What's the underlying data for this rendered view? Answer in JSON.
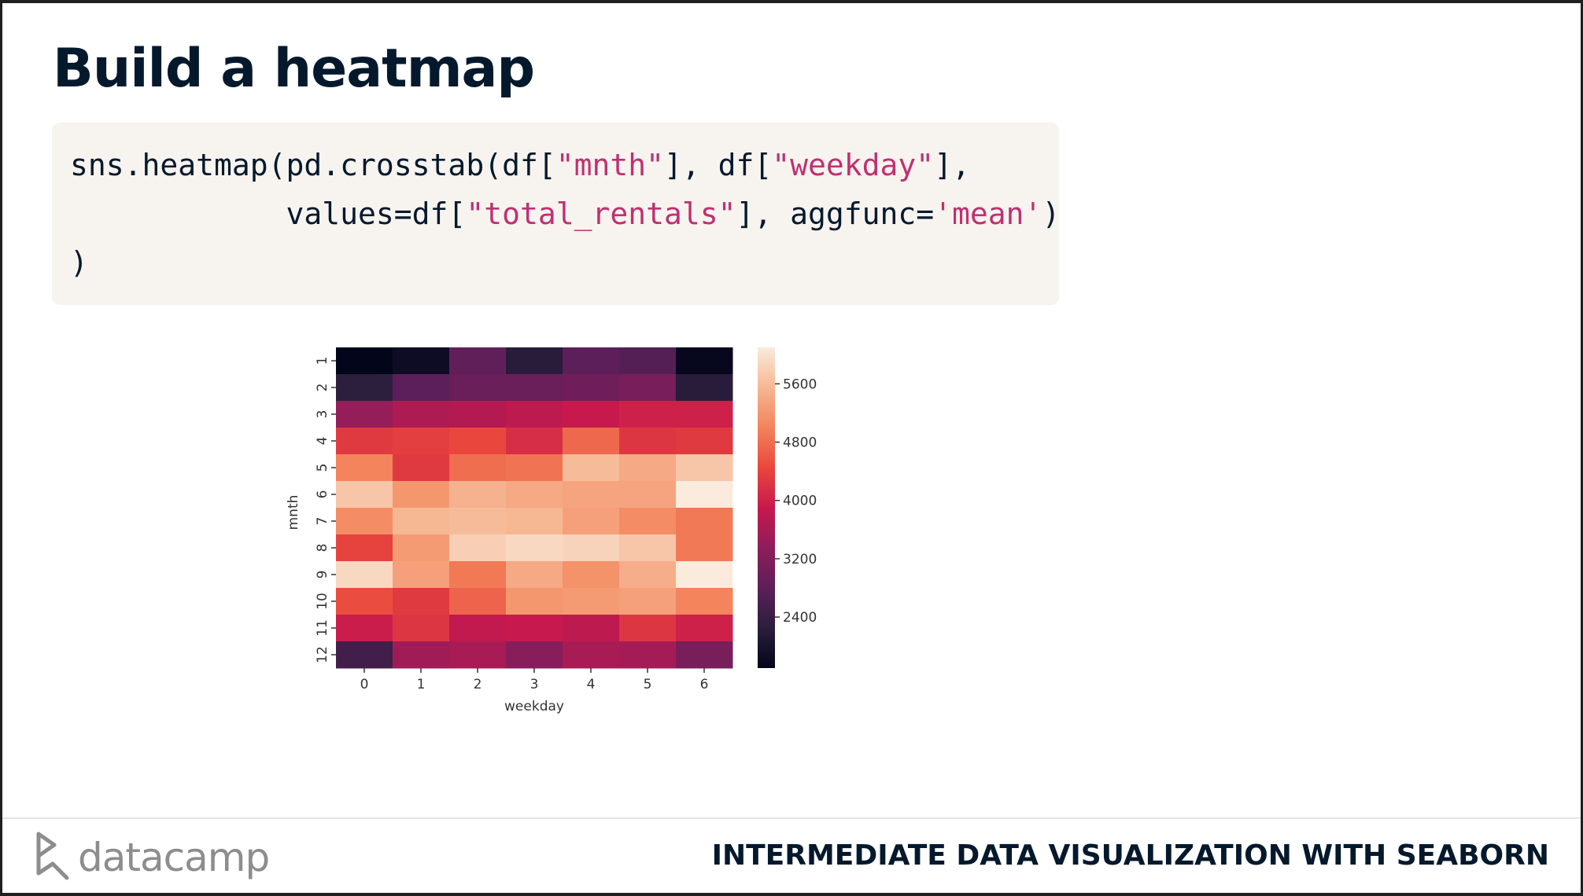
{
  "slide": {
    "title": "Build a heatmap",
    "course_name": "INTERMEDIATE DATA VISUALIZATION WITH SEABORN",
    "logo_text": "datacamp"
  },
  "code": {
    "line1": [
      {
        "t": "sns.heatmap(pd.crosstab(df[",
        "s": false
      },
      {
        "t": "\"mnth\"",
        "s": true
      },
      {
        "t": "], df[",
        "s": false
      },
      {
        "t": "\"weekday\"",
        "s": true
      },
      {
        "t": "],",
        "s": false
      }
    ],
    "line2": [
      {
        "t": "            values=df[",
        "s": false
      },
      {
        "t": "\"total_rentals\"",
        "s": true
      },
      {
        "t": "], aggfunc=",
        "s": false
      },
      {
        "t": "'mean'",
        "s": true
      },
      {
        "t": ")",
        "s": false
      }
    ],
    "line3": [
      {
        "t": ")",
        "s": false
      }
    ]
  },
  "chart_data": {
    "type": "heatmap",
    "xlabel": "weekday",
    "ylabel": "mnth",
    "x_categories": [
      "0",
      "1",
      "2",
      "3",
      "4",
      "5",
      "6"
    ],
    "y_categories": [
      "1",
      "2",
      "3",
      "4",
      "5",
      "6",
      "7",
      "8",
      "9",
      "10",
      "11",
      "12"
    ],
    "values": [
      [
        1700,
        1850,
        2850,
        2200,
        2800,
        2700,
        1750
      ],
      [
        2250,
        2800,
        2950,
        2950,
        3000,
        3100,
        2200
      ],
      [
        3400,
        3650,
        3700,
        3800,
        3900,
        4000,
        4000
      ],
      [
        4300,
        4350,
        4450,
        4150,
        4750,
        4250,
        4300
      ],
      [
        5000,
        4300,
        4800,
        4850,
        5600,
        5400,
        5700
      ],
      [
        5700,
        5200,
        5500,
        5400,
        5350,
        5350,
        6100
      ],
      [
        5100,
        5550,
        5600,
        5550,
        5300,
        5100,
        4900
      ],
      [
        4400,
        5250,
        5800,
        5900,
        5850,
        5700,
        4900
      ],
      [
        5900,
        5300,
        4900,
        5400,
        5150,
        5450,
        6100
      ],
      [
        4500,
        4300,
        4700,
        5200,
        5250,
        5300,
        5000
      ],
      [
        3950,
        4250,
        3850,
        3900,
        3800,
        4250,
        4000
      ],
      [
        2500,
        3500,
        3600,
        3250,
        3600,
        3550,
        3100
      ]
    ],
    "vmin": 1700,
    "vmax": 6100,
    "colormap": "rocket",
    "colorbar_ticks": [
      2400,
      3200,
      4000,
      4800,
      5600
    ]
  }
}
